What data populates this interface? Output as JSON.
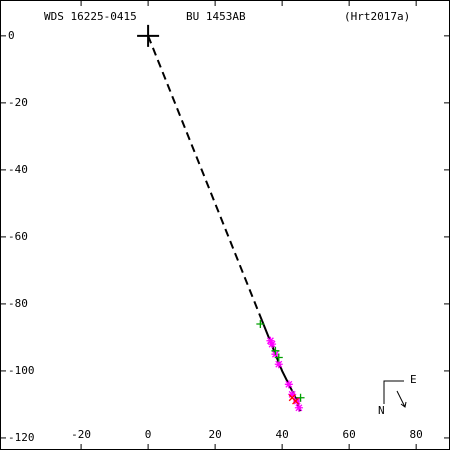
{
  "chart_data": {
    "type": "scatter",
    "title": "WDS 16225-0415",
    "subtitle": "BU 1453AB",
    "annotation": "(Hrt2017a)",
    "compass": {
      "east": "E",
      "north": "N"
    },
    "xlim": [
      -44.2,
      90.1
    ],
    "ylim": [
      -123.6,
      10.7
    ],
    "xticks": [
      -20,
      0,
      20,
      40,
      60,
      80
    ],
    "yticks": [
      0,
      -20,
      -40,
      -60,
      -80,
      -100,
      -120
    ],
    "primary": {
      "x": 0,
      "y": 0,
      "color": "#000000"
    },
    "series": [
      {
        "color": "#000000",
        "style": "dashed",
        "x": [
          0,
          34
        ],
        "y": [
          0,
          -85
        ]
      },
      {
        "color": "#000000",
        "style": "solid",
        "x": [
          34,
          36,
          38,
          40,
          42,
          44,
          45.5
        ],
        "y": [
          -85,
          -90,
          -95,
          -100,
          -104,
          -108,
          -112
        ]
      },
      {
        "color": "#ff00ff",
        "marker": "asterisk",
        "x": [
          36.5,
          37,
          38,
          39,
          42,
          43,
          44.5,
          45
        ],
        "y": [
          -91,
          -92,
          -95,
          -98,
          -104,
          -107,
          -109,
          -111
        ]
      },
      {
        "color": "#00a000",
        "marker": "plus",
        "x": [
          33.5,
          38,
          39,
          45.5
        ],
        "y": [
          -86,
          -94,
          -96,
          -108
        ]
      },
      {
        "color": "#ff0000",
        "marker": "cross",
        "x": [
          43,
          44
        ],
        "y": [
          -108,
          -109
        ]
      }
    ]
  }
}
